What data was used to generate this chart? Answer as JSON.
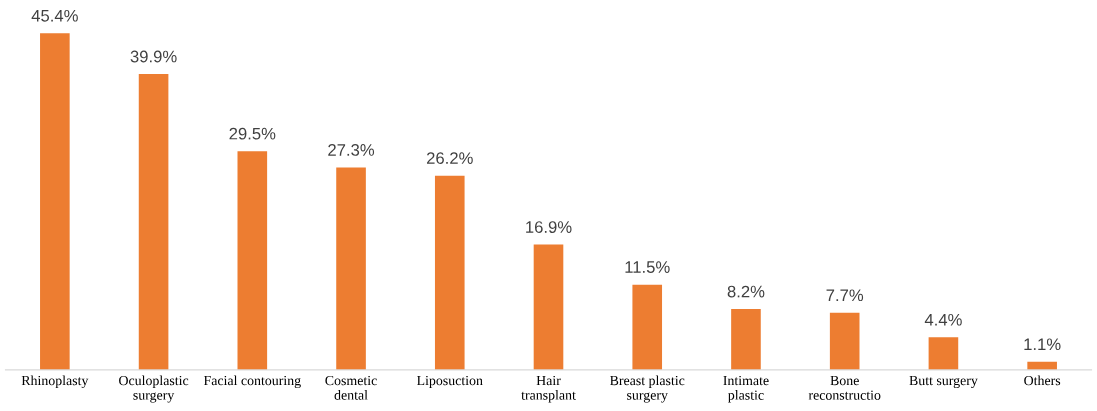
{
  "chart_data": {
    "type": "bar",
    "categories": [
      "Rhinoplasty",
      "Oculoplastic\nsurgery",
      "Facial contouring",
      "Cosmetic\ndental",
      "Liposuction",
      "Hair\ntransplant",
      "Breast plastic\nsurgery",
      "Intimate\nplastic",
      "Bone\nreconstructio",
      "Butt surgery",
      "Others"
    ],
    "values": [
      45.4,
      39.9,
      29.5,
      27.3,
      26.2,
      16.9,
      11.5,
      8.2,
      7.7,
      4.4,
      1.1
    ],
    "value_labels": [
      "45.4%",
      "39.9%",
      "29.5%",
      "27.3%",
      "26.2%",
      "16.9%",
      "11.5%",
      "8.2%",
      "7.7%",
      "4.4%",
      "1.1%"
    ],
    "color": "#ed7d31",
    "tick_labels": "x",
    "grid": false,
    "legend": false
  }
}
